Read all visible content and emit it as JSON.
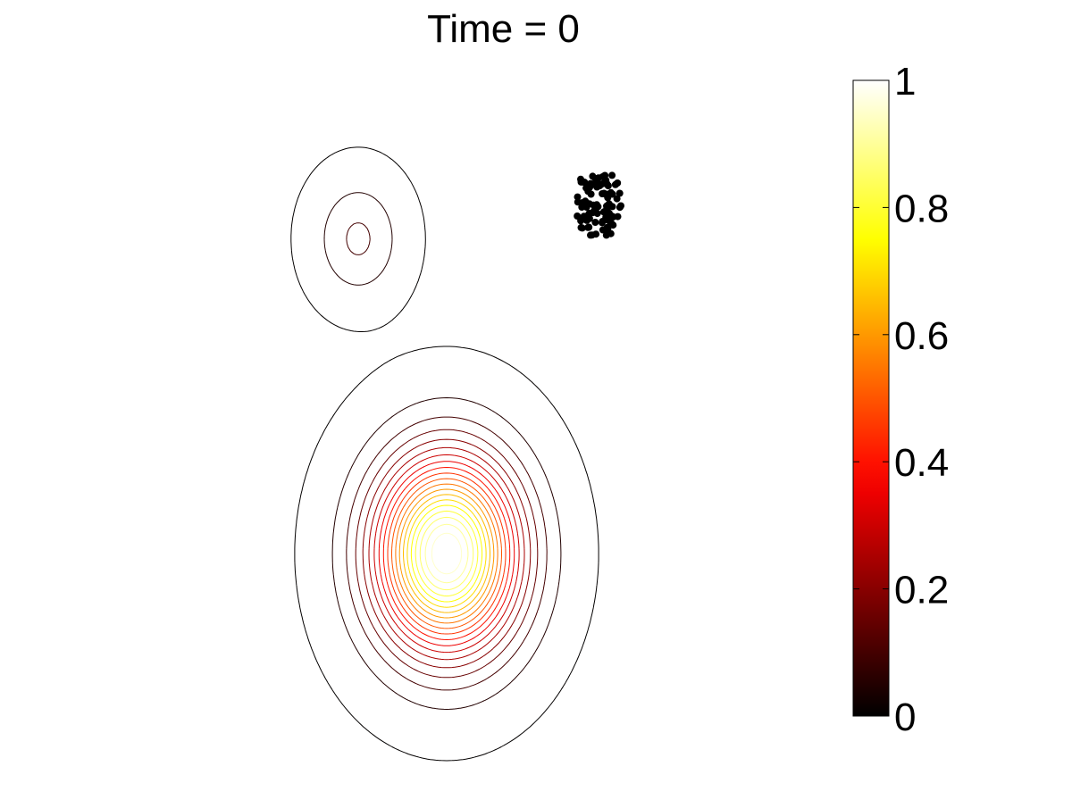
{
  "chart_data": {
    "type": "contour",
    "title": "Time = 0",
    "axes_visible": false,
    "colormap": "hot",
    "colorbar": {
      "range": [
        0,
        1
      ],
      "ticks": [
        0,
        0.2,
        0.4,
        0.6,
        0.8,
        1
      ],
      "tick_labels": [
        "0",
        "0.2",
        "0.4",
        "0.6",
        "0.8",
        "1"
      ],
      "placement": "right"
    },
    "contour_levels": [
      0.005,
      0.05,
      0.1,
      0.15,
      0.2,
      0.25,
      0.3,
      0.35,
      0.4,
      0.45,
      0.5,
      0.55,
      0.6,
      0.65,
      0.7,
      0.75,
      0.8,
      0.85,
      0.9,
      0.95
    ],
    "field": {
      "x_range": [
        0,
        1
      ],
      "y_range": [
        0,
        1
      ],
      "components": [
        {
          "name": "large-bump",
          "amplitude": 1.0,
          "center": [
            0.5,
            0.32
          ],
          "sigma": 0.095
        },
        {
          "name": "small-bump",
          "amplitude": 0.11,
          "center": [
            0.32,
            0.79
          ],
          "sigma": 0.055
        }
      ]
    },
    "particles": {
      "count": 100,
      "center": [
        0.81,
        0.84
      ],
      "spread": [
        0.045,
        0.045
      ],
      "color": "#000000"
    }
  }
}
